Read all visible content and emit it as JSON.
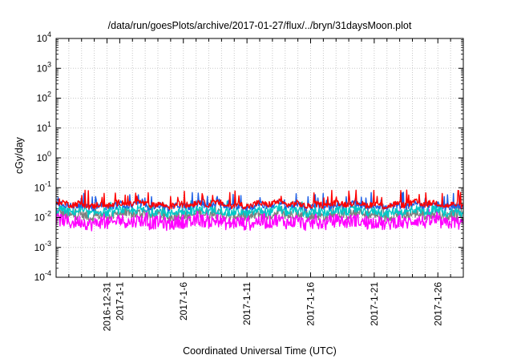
{
  "chart_data": {
    "type": "line",
    "title": "/data/run/goesPlots/archive/2017-01-27/flux/../bryn/31daysMoon.plot",
    "xlabel": "Coordinated Universal Time (UTC)",
    "ylabel": "cGy/day",
    "yscale": "log",
    "ylim": [
      0.0001,
      10000
    ],
    "xlim": [
      "2016-12-27",
      "2017-01-28"
    ],
    "grid": true,
    "x_ticks": [
      "2016-12-31",
      "2017-1-1",
      "2017-1-6",
      "2017-1-11",
      "2017-1-16",
      "2017-1-21",
      "2017-1-26"
    ],
    "y_ticks": [
      {
        "mantissa": "10",
        "exp": "-4"
      },
      {
        "mantissa": "10",
        "exp": "-3"
      },
      {
        "mantissa": "10",
        "exp": "-2"
      },
      {
        "mantissa": "10",
        "exp": "-1"
      },
      {
        "mantissa": "10",
        "exp": "0"
      },
      {
        "mantissa": "10",
        "exp": "1"
      },
      {
        "mantissa": "10",
        "exp": "2"
      },
      {
        "mantissa": "10",
        "exp": "3"
      },
      {
        "mantissa": "10",
        "exp": "4"
      }
    ],
    "series": [
      {
        "color": "#ff0000",
        "typical": 0.028,
        "low": 0.018,
        "high": 0.085
      },
      {
        "color": "#1e5fe6",
        "typical": 0.025,
        "low": 0.016,
        "high": 0.07
      },
      {
        "color": "#00c8c8",
        "typical": 0.016,
        "low": 0.009,
        "high": 0.04
      },
      {
        "color": "#808080",
        "typical": 0.012,
        "low": 0.006,
        "high": 0.03
      },
      {
        "color": "#ff00ff",
        "typical": 0.007,
        "low": 0.0028,
        "high": 0.02
      }
    ]
  }
}
